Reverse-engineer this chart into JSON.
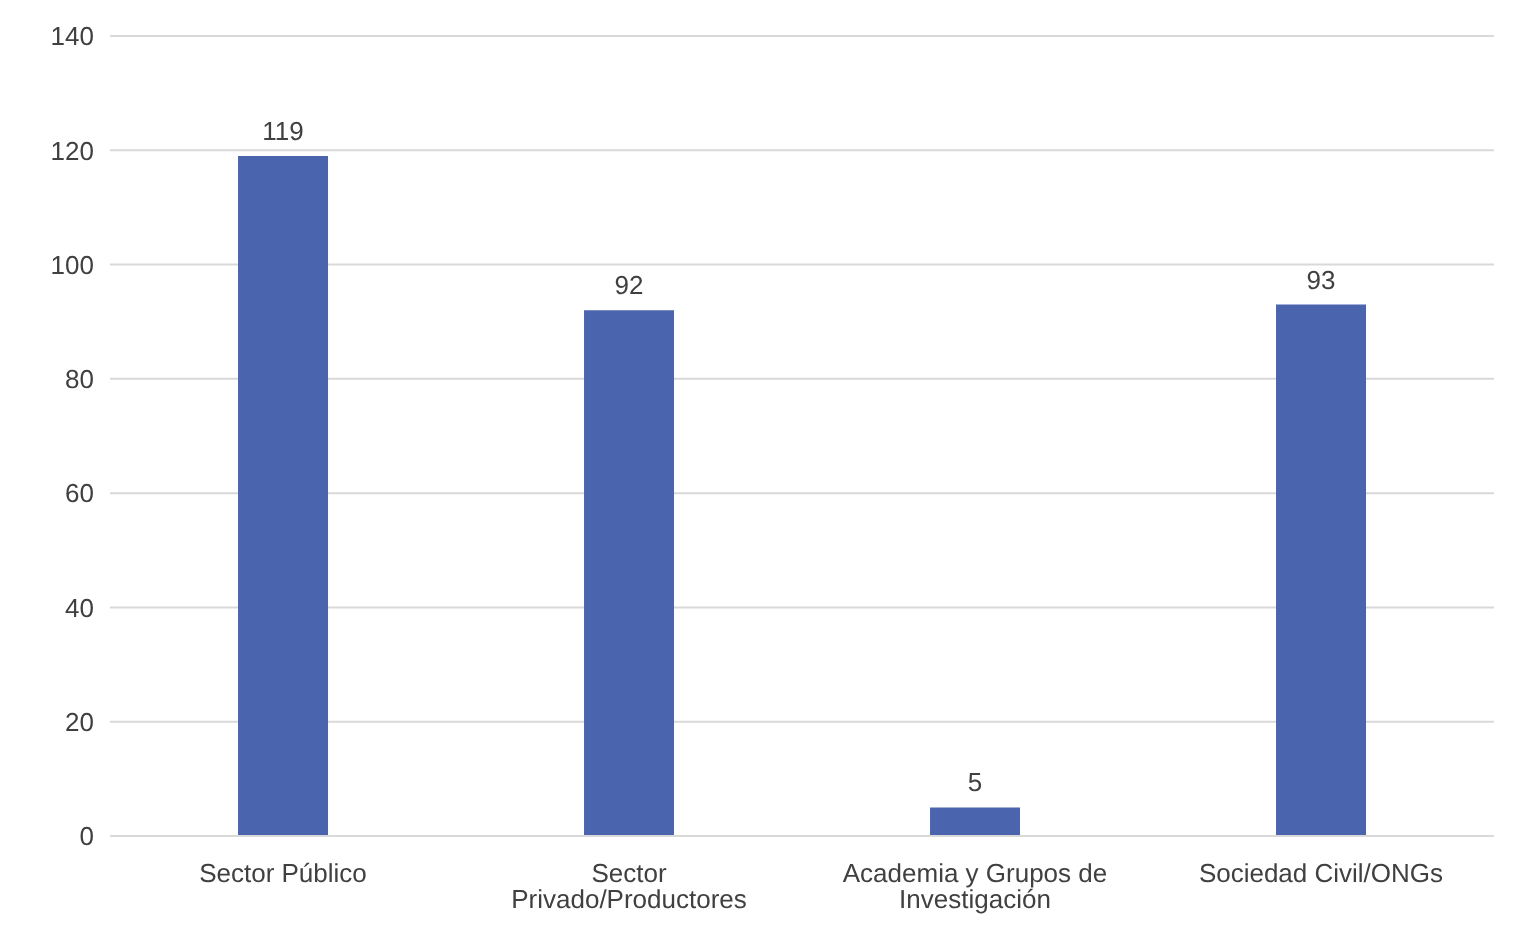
{
  "chart_data": {
    "type": "bar",
    "categories": [
      "Sector Público",
      "Sector Privado/Productores",
      "Academia y Grupos de Investigación",
      "Sociedad Civil/ONGs"
    ],
    "values": [
      119,
      92,
      5,
      93
    ],
    "color": "#4a65ad",
    "ylim": [
      0,
      140
    ],
    "yticks": [
      0,
      20,
      40,
      60,
      80,
      100,
      120,
      140
    ],
    "grid": "y",
    "data_labels": true
  }
}
